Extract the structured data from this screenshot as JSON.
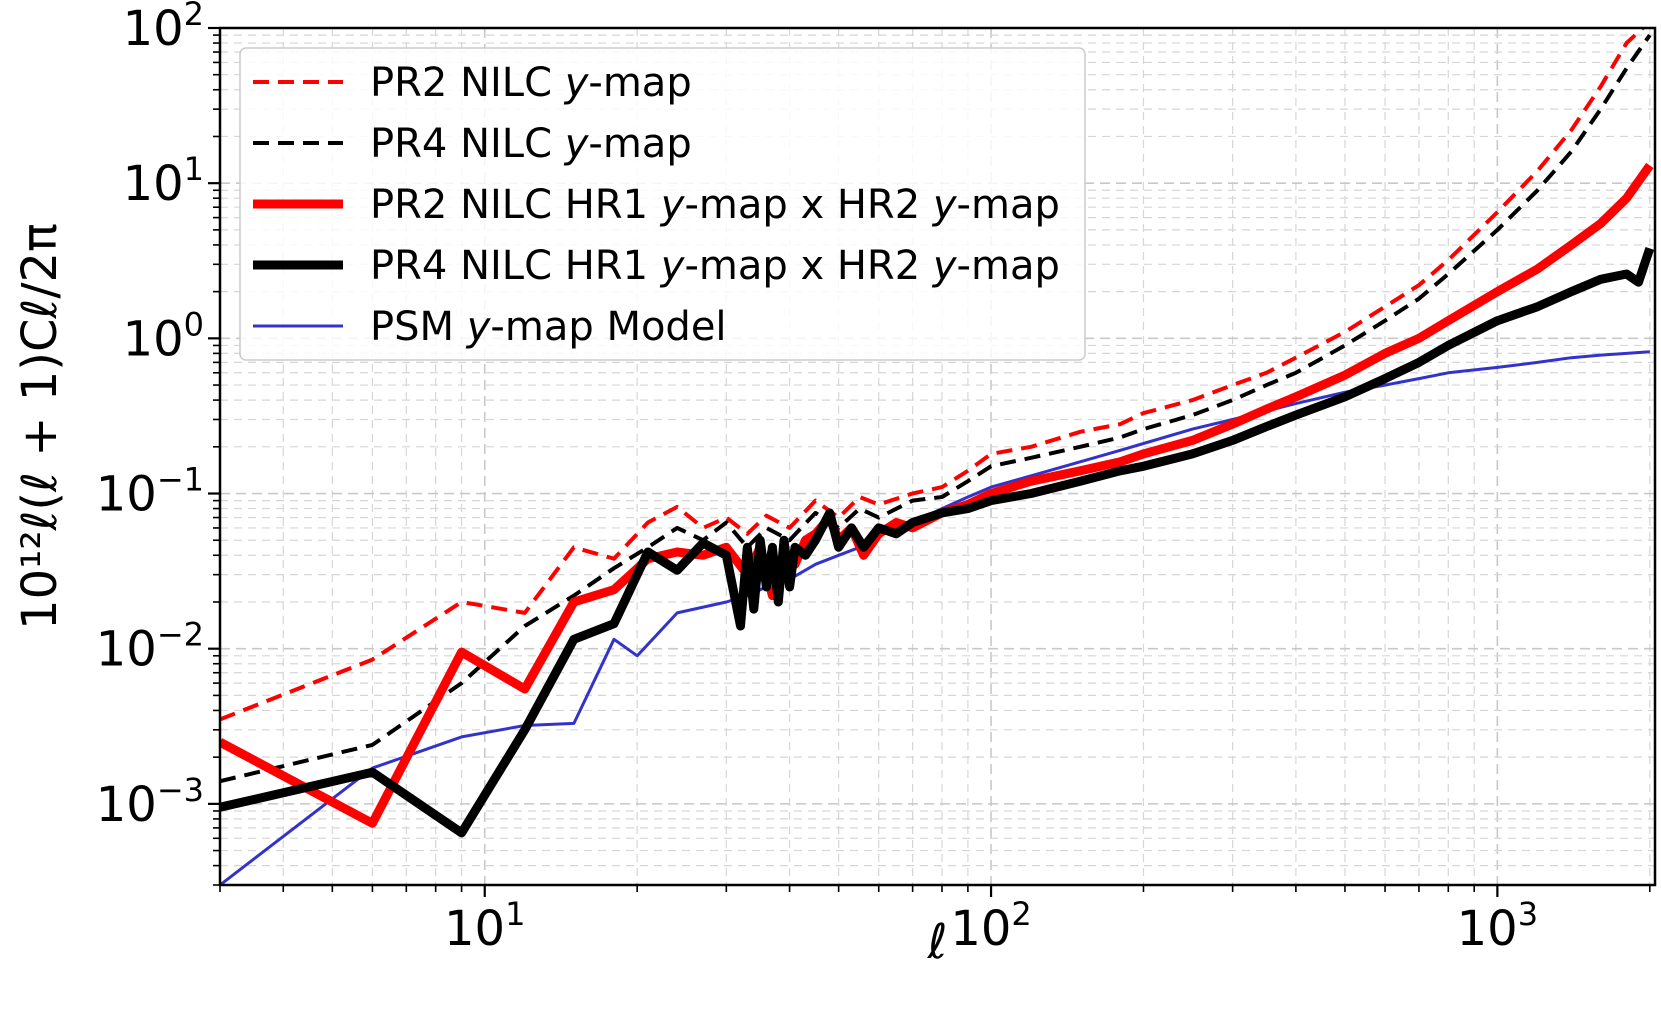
{
  "chart_data": {
    "type": "line",
    "title": "",
    "xlabel": "ℓ",
    "ylabel": "10¹²ℓ(ℓ + 1)Cℓ/2π",
    "xscale": "log",
    "yscale": "log",
    "xlim": [
      3,
      2048
    ],
    "ylim": [
      0.0003,
      100
    ],
    "grid": true,
    "legend_position": "upper-left",
    "x_ticks": [
      {
        "value": 10,
        "base": "10",
        "exp": "1"
      },
      {
        "value": 100,
        "base": "10",
        "exp": "2"
      },
      {
        "value": 1000,
        "base": "10",
        "exp": "3"
      }
    ],
    "y_ticks": [
      {
        "value": 0.001,
        "base": "10",
        "exp": "−3"
      },
      {
        "value": 0.01,
        "base": "10",
        "exp": "−2"
      },
      {
        "value": 0.1,
        "base": "10",
        "exp": "−1"
      },
      {
        "value": 1,
        "base": "10",
        "exp": "0"
      },
      {
        "value": 10,
        "base": "10",
        "exp": "1"
      },
      {
        "value": 100,
        "base": "10",
        "exp": "2"
      }
    ],
    "series": [
      {
        "name": "PR2 NILC y-map",
        "legend_parts": [
          "PR2 NILC ",
          "y",
          "-map"
        ],
        "color": "#ff0000",
        "style": "dashed",
        "width": 4,
        "x": [
          3,
          6,
          9,
          12,
          15,
          18,
          21,
          24,
          27,
          30,
          33,
          36,
          40,
          45,
          50,
          55,
          60,
          70,
          80,
          90,
          100,
          120,
          150,
          180,
          200,
          250,
          300,
          350,
          400,
          500,
          600,
          700,
          800,
          1000,
          1200,
          1400,
          1600,
          1800,
          2000
        ],
        "y": [
          0.0035,
          0.0085,
          0.02,
          0.017,
          0.045,
          0.038,
          0.065,
          0.082,
          0.06,
          0.07,
          0.055,
          0.072,
          0.06,
          0.09,
          0.07,
          0.095,
          0.085,
          0.1,
          0.11,
          0.14,
          0.18,
          0.2,
          0.25,
          0.28,
          0.33,
          0.4,
          0.5,
          0.6,
          0.75,
          1.1,
          1.6,
          2.2,
          3.2,
          6.5,
          12,
          22,
          42,
          80,
          110
        ]
      },
      {
        "name": "PR4 NILC y-map",
        "legend_parts": [
          "PR4 NILC ",
          "y",
          "-map"
        ],
        "color": "#000000",
        "style": "dashed",
        "width": 4,
        "x": [
          3,
          6,
          9,
          12,
          15,
          18,
          21,
          24,
          27,
          30,
          33,
          36,
          40,
          45,
          50,
          55,
          60,
          70,
          80,
          90,
          100,
          120,
          150,
          180,
          200,
          250,
          300,
          350,
          400,
          500,
          600,
          700,
          800,
          1000,
          1200,
          1400,
          1600,
          1800,
          2000
        ],
        "y": [
          0.0014,
          0.0024,
          0.006,
          0.014,
          0.022,
          0.033,
          0.045,
          0.06,
          0.05,
          0.065,
          0.045,
          0.06,
          0.05,
          0.075,
          0.06,
          0.08,
          0.07,
          0.09,
          0.095,
          0.12,
          0.15,
          0.17,
          0.2,
          0.23,
          0.26,
          0.32,
          0.4,
          0.5,
          0.6,
          0.9,
          1.3,
          1.8,
          2.6,
          5,
          9,
          16,
          30,
          55,
          90
        ]
      },
      {
        "name": "PR2 NILC HR1 y-map x HR2 y-map",
        "legend_parts": [
          "PR2 NILC HR1 ",
          "y",
          "-map x HR2 ",
          "y",
          "-map"
        ],
        "color": "#ff0000",
        "style": "solid",
        "width": 9,
        "x": [
          3,
          6,
          9,
          12,
          15,
          18,
          21,
          24,
          27,
          30,
          33,
          35,
          37,
          39,
          41,
          43,
          45,
          48,
          50,
          53,
          56,
          60,
          65,
          70,
          80,
          90,
          100,
          120,
          150,
          180,
          200,
          250,
          300,
          350,
          400,
          500,
          600,
          700,
          800,
          1000,
          1200,
          1400,
          1600,
          1800,
          2000
        ],
        "y": [
          0.0025,
          0.00075,
          0.0095,
          0.0055,
          0.02,
          0.024,
          0.038,
          0.042,
          0.04,
          0.045,
          0.03,
          0.045,
          0.022,
          0.04,
          0.035,
          0.05,
          0.055,
          0.07,
          0.05,
          0.06,
          0.04,
          0.055,
          0.065,
          0.06,
          0.075,
          0.085,
          0.1,
          0.12,
          0.14,
          0.16,
          0.18,
          0.22,
          0.28,
          0.35,
          0.42,
          0.58,
          0.8,
          1.0,
          1.3,
          2.0,
          2.8,
          4.0,
          5.5,
          8.0,
          13
        ]
      },
      {
        "name": "PR4 NILC HR1 y-map x HR2 y-map",
        "legend_parts": [
          "PR4 NILC HR1 ",
          "y",
          "-map x HR2 ",
          "y",
          "-map"
        ],
        "color": "#000000",
        "style": "solid",
        "width": 9,
        "x": [
          3,
          6,
          9,
          12,
          15,
          18,
          21,
          24,
          27,
          30,
          32,
          33,
          34,
          35,
          36,
          37,
          38,
          39,
          40,
          41,
          43,
          45,
          48,
          50,
          53,
          56,
          60,
          65,
          70,
          80,
          90,
          100,
          120,
          150,
          180,
          200,
          250,
          300,
          350,
          400,
          500,
          600,
          700,
          800,
          1000,
          1200,
          1400,
          1600,
          1800,
          1900,
          2000
        ],
        "y": [
          0.00095,
          0.0016,
          0.00065,
          0.003,
          0.0115,
          0.0145,
          0.042,
          0.032,
          0.048,
          0.04,
          0.014,
          0.045,
          0.018,
          0.05,
          0.025,
          0.045,
          0.02,
          0.05,
          0.025,
          0.045,
          0.04,
          0.05,
          0.075,
          0.045,
          0.06,
          0.045,
          0.06,
          0.055,
          0.065,
          0.075,
          0.08,
          0.09,
          0.1,
          0.12,
          0.14,
          0.15,
          0.18,
          0.22,
          0.27,
          0.32,
          0.42,
          0.55,
          0.7,
          0.9,
          1.3,
          1.6,
          2.0,
          2.4,
          2.6,
          2.3,
          3.8
        ]
      },
      {
        "name": "PSM y-map Model",
        "legend_parts": [
          "PSM ",
          "y",
          "-map Model"
        ],
        "color": "#3333cc",
        "style": "solid",
        "width": 3,
        "x": [
          3,
          6,
          9,
          12,
          15,
          18,
          20,
          24,
          28,
          30,
          33,
          36,
          40,
          45,
          50,
          55,
          60,
          70,
          80,
          90,
          100,
          120,
          150,
          180,
          200,
          250,
          300,
          350,
          400,
          500,
          600,
          700,
          800,
          1000,
          1200,
          1400,
          1600,
          1800,
          2000
        ],
        "y": [
          0.0003,
          0.0017,
          0.0027,
          0.0032,
          0.0033,
          0.0115,
          0.009,
          0.017,
          0.019,
          0.02,
          0.022,
          0.025,
          0.028,
          0.035,
          0.04,
          0.045,
          0.055,
          0.065,
          0.08,
          0.095,
          0.11,
          0.13,
          0.16,
          0.19,
          0.21,
          0.26,
          0.3,
          0.34,
          0.38,
          0.45,
          0.5,
          0.55,
          0.6,
          0.65,
          0.7,
          0.75,
          0.78,
          0.8,
          0.82
        ]
      }
    ]
  }
}
